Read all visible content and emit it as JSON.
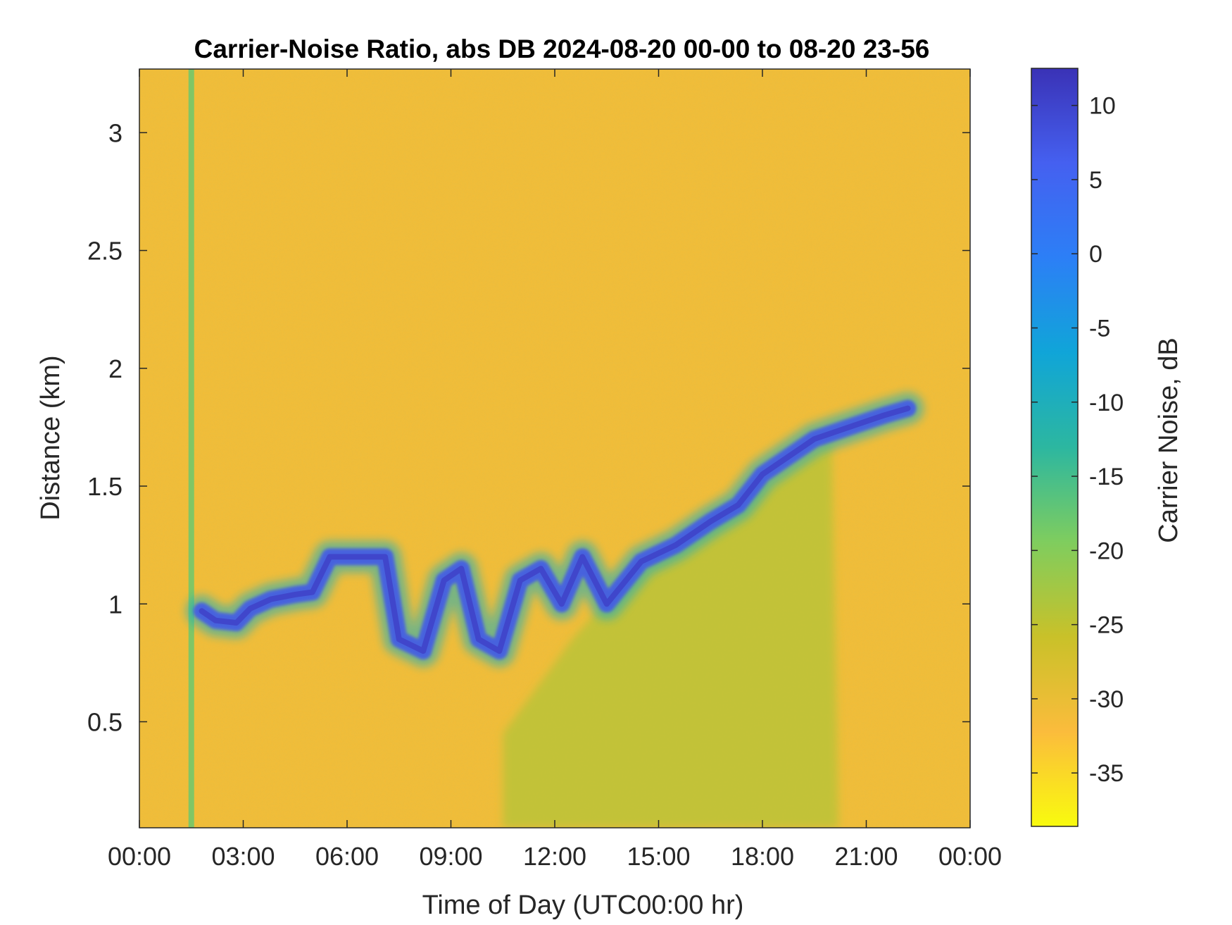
{
  "chart_data": {
    "type": "heatmap",
    "title": "Carrier-Noise Ratio, abs DB 2024-08-20 00-00 to 08-20 23-56",
    "xlabel": "Time of Day (UTC00:00 hr)",
    "ylabel": "Distance (km)",
    "xlim": [
      0,
      24
    ],
    "ylim": [
      0.05,
      3.27
    ],
    "x_ticks": [
      {
        "value": 0,
        "label": "00:00"
      },
      {
        "value": 3,
        "label": "03:00"
      },
      {
        "value": 6,
        "label": "06:00"
      },
      {
        "value": 9,
        "label": "09:00"
      },
      {
        "value": 12,
        "label": "12:00"
      },
      {
        "value": 15,
        "label": "15:00"
      },
      {
        "value": 18,
        "label": "18:00"
      },
      {
        "value": 21,
        "label": "21:00"
      },
      {
        "value": 24,
        "label": "00:00"
      }
    ],
    "y_ticks": [
      {
        "value": 0.5,
        "label": "0.5"
      },
      {
        "value": 1,
        "label": "1"
      },
      {
        "value": 1.5,
        "label": "1.5"
      },
      {
        "value": 2,
        "label": "2"
      },
      {
        "value": 2.5,
        "label": "2.5"
      },
      {
        "value": 3,
        "label": "3"
      }
    ],
    "grid": false,
    "colorbar": {
      "label": "Carrier Noise, dB",
      "range": [
        -38.6,
        12.5
      ],
      "ticks": [
        {
          "value": 10,
          "label": "10"
        },
        {
          "value": 5,
          "label": "5"
        },
        {
          "value": 0,
          "label": "0"
        },
        {
          "value": -5,
          "label": "-5"
        },
        {
          "value": -10,
          "label": "-10"
        },
        {
          "value": -15,
          "label": "-15"
        },
        {
          "value": -20,
          "label": "-20"
        },
        {
          "value": -25,
          "label": "-25"
        },
        {
          "value": -30,
          "label": "-30"
        },
        {
          "value": -35,
          "label": "-35"
        }
      ],
      "colormap": [
        "#f9fb0e",
        "#fbbc3c",
        "#c9c129",
        "#7fcd5e",
        "#2cb7a0",
        "#10a5d8",
        "#2c7ff6",
        "#4560f0",
        "#3a32b6"
      ]
    },
    "background_value_db": -31,
    "features": [
      {
        "kind": "boundary-layer-top",
        "value_db": 7,
        "points": [
          [
            1.8,
            0.97
          ],
          [
            2.2,
            0.93
          ],
          [
            2.8,
            0.92
          ],
          [
            3.2,
            0.98
          ],
          [
            3.8,
            1.02
          ],
          [
            4.5,
            1.04
          ],
          [
            5.0,
            1.05
          ],
          [
            5.5,
            1.2
          ],
          [
            6.5,
            1.2
          ],
          [
            7.1,
            1.2
          ],
          [
            7.5,
            0.85
          ],
          [
            8.2,
            0.8
          ],
          [
            8.8,
            1.1
          ],
          [
            9.3,
            1.15
          ],
          [
            9.8,
            0.85
          ],
          [
            10.4,
            0.8
          ],
          [
            11.0,
            1.1
          ],
          [
            11.6,
            1.15
          ],
          [
            12.2,
            1.0
          ],
          [
            12.8,
            1.2
          ],
          [
            13.5,
            1.0
          ],
          [
            14.5,
            1.18
          ],
          [
            15.5,
            1.25
          ],
          [
            16.5,
            1.35
          ],
          [
            17.3,
            1.42
          ],
          [
            18.0,
            1.55
          ],
          [
            19.5,
            1.7
          ],
          [
            20.5,
            1.75
          ],
          [
            21.5,
            1.8
          ],
          [
            22.2,
            1.83
          ]
        ]
      },
      {
        "kind": "near-surface-mixed-layer",
        "value_db": -24,
        "points": [
          [
            10.5,
            0.45
          ],
          [
            12.5,
            0.85
          ],
          [
            14.0,
            1.1
          ],
          [
            15.5,
            1.25
          ],
          [
            17.0,
            1.42
          ],
          [
            18.5,
            1.55
          ],
          [
            19.5,
            1.65
          ],
          [
            20.0,
            1.7
          ],
          [
            20.2,
            0.05
          ]
        ]
      },
      {
        "kind": "vertical-streak",
        "value_db": -18,
        "x": 1.5,
        "y_range": [
          0.05,
          3.27
        ]
      }
    ]
  }
}
